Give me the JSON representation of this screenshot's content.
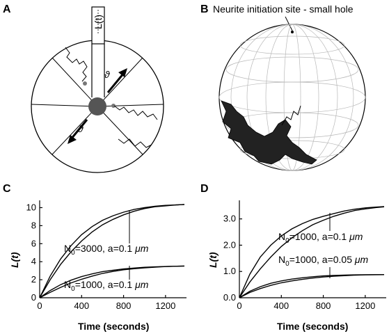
{
  "panels": {
    "A": {
      "letter": "A",
      "tube_label": "L(t)",
      "theta_upper": "ϑ",
      "theta_lower": "ϑ"
    },
    "B": {
      "letter": "B",
      "annotation": "Neurite initiation site - small hole"
    },
    "C": {
      "letter": "C"
    },
    "D": {
      "letter": "D"
    }
  },
  "chart_data": [
    {
      "panel": "C",
      "type": "line",
      "xlabel": "Time (seconds)",
      "ylabel": "L(t)",
      "xlim": [
        0,
        1400
      ],
      "ylim": [
        0,
        10.5
      ],
      "xticks": [
        0,
        400,
        800,
        1200
      ],
      "yticks": [
        0,
        2,
        4,
        6,
        8,
        10
      ],
      "ytick_labels": [
        "0",
        "2",
        "4",
        "6",
        "8",
        "10"
      ],
      "grid": false,
      "annotations": [
        {
          "text_pre": "N",
          "sub": "0",
          "text_post": "=3000, a=0.1 ",
          "unit": "μm"
        },
        {
          "text_pre": "N",
          "sub": "0",
          "text_post": "=1000, a=0.1 ",
          "unit": "μm"
        }
      ],
      "series": [
        {
          "x": [
            0,
            100,
            200,
            300,
            400,
            500,
            600,
            700,
            800,
            900,
            1000,
            1100,
            1200,
            1300,
            1380
          ],
          "values": [
            0,
            2.4,
            4.3,
            5.8,
            7.0,
            7.9,
            8.6,
            9.1,
            9.5,
            9.8,
            10.0,
            10.15,
            10.25,
            10.3,
            10.35
          ]
        },
        {
          "x": [
            0,
            100,
            200,
            300,
            400,
            500,
            600,
            700,
            800,
            900,
            1000,
            1100,
            1200,
            1300,
            1380
          ],
          "values": [
            0,
            2.0,
            3.7,
            5.1,
            6.3,
            7.3,
            8.1,
            8.7,
            9.2,
            9.6,
            9.9,
            10.1,
            10.2,
            10.3,
            10.35
          ]
        },
        {
          "x": [
            0,
            100,
            200,
            300,
            400,
            500,
            600,
            700,
            800,
            900,
            1000,
            1100,
            1200,
            1300,
            1380
          ],
          "values": [
            0,
            0.8,
            1.45,
            1.95,
            2.35,
            2.65,
            2.9,
            3.05,
            3.2,
            3.3,
            3.38,
            3.43,
            3.47,
            3.5,
            3.52
          ]
        },
        {
          "x": [
            0,
            100,
            200,
            300,
            400,
            500,
            600,
            700,
            800,
            900,
            1000,
            1100,
            1200,
            1300,
            1380
          ],
          "values": [
            0,
            0.6,
            1.15,
            1.65,
            2.05,
            2.4,
            2.7,
            2.92,
            3.1,
            3.22,
            3.32,
            3.4,
            3.46,
            3.5,
            3.52
          ]
        }
      ]
    },
    {
      "panel": "D",
      "type": "line",
      "xlabel": "Time (seconds)",
      "ylabel": "L(t)",
      "xlim": [
        0,
        1400
      ],
      "ylim": [
        0,
        3.6
      ],
      "xticks": [
        0,
        400,
        800,
        1200
      ],
      "yticks": [
        0.0,
        1.0,
        2.0,
        3.0
      ],
      "ytick_labels": [
        "0.0",
        "1.0",
        "2.0",
        "3.0"
      ],
      "grid": false,
      "annotations": [
        {
          "text_pre": "N",
          "sub": "0",
          "text_post": "=1000, a=0.1 ",
          "unit": "μm"
        },
        {
          "text_pre": "N",
          "sub": "0",
          "text_post": "=1000, a=0.05 ",
          "unit": "μm"
        }
      ],
      "series": [
        {
          "x": [
            0,
            100,
            200,
            300,
            400,
            500,
            600,
            700,
            800,
            900,
            1000,
            1100,
            1200,
            1300,
            1380
          ],
          "values": [
            0,
            0.9,
            1.55,
            2.0,
            2.35,
            2.62,
            2.82,
            2.98,
            3.1,
            3.2,
            3.3,
            3.37,
            3.42,
            3.45,
            3.47
          ]
        },
        {
          "x": [
            0,
            100,
            200,
            300,
            400,
            500,
            600,
            700,
            800,
            900,
            1000,
            1100,
            1200,
            1300,
            1380
          ],
          "values": [
            0,
            0.6,
            1.1,
            1.55,
            1.95,
            2.28,
            2.55,
            2.78,
            2.95,
            3.1,
            3.22,
            3.32,
            3.38,
            3.43,
            3.46
          ]
        },
        {
          "x": [
            0,
            100,
            200,
            300,
            400,
            500,
            600,
            700,
            800,
            900,
            1000,
            1100,
            1200,
            1300,
            1380
          ],
          "values": [
            0,
            0.25,
            0.42,
            0.55,
            0.64,
            0.71,
            0.76,
            0.8,
            0.83,
            0.85,
            0.86,
            0.87,
            0.875,
            0.88,
            0.88
          ]
        },
        {
          "x": [
            0,
            100,
            200,
            300,
            400,
            500,
            600,
            700,
            800,
            900,
            1000,
            1100,
            1200,
            1300,
            1380
          ],
          "values": [
            0,
            0.2,
            0.35,
            0.47,
            0.57,
            0.64,
            0.7,
            0.75,
            0.79,
            0.82,
            0.84,
            0.86,
            0.87,
            0.875,
            0.88
          ]
        }
      ]
    }
  ]
}
